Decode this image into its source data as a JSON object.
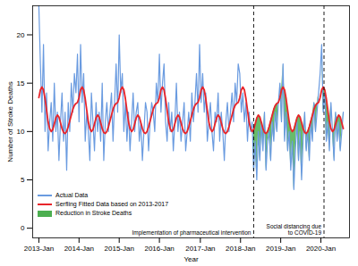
{
  "chart_data": {
    "type": "line",
    "xlabel": "Year",
    "ylabel": "Number of Stroke Deaths",
    "grid": false,
    "legend": "bottom-left",
    "xlim": [
      -8,
      402
    ],
    "xticks": [
      {
        "value": 0,
        "label": "2013-Jan"
      },
      {
        "value": 52,
        "label": "2014-Jan"
      },
      {
        "value": 104,
        "label": "2015-Jan"
      },
      {
        "value": 156,
        "label": "2016-Jan"
      },
      {
        "value": 209,
        "label": "2017-Jan"
      },
      {
        "value": 261,
        "label": "2018-Jan"
      },
      {
        "value": 313,
        "label": "2019-Jan"
      },
      {
        "value": 365,
        "label": "2020-Jan"
      }
    ],
    "ylim": [
      -1,
      23
    ],
    "yticks": [
      0,
      5,
      10,
      15,
      20
    ],
    "x": [
      0,
      2,
      4,
      6,
      8,
      10,
      12,
      14,
      16,
      18,
      20,
      22,
      24,
      26,
      28,
      30,
      32,
      34,
      36,
      38,
      40,
      42,
      44,
      46,
      48,
      50,
      52,
      54,
      56,
      58,
      60,
      62,
      64,
      66,
      68,
      70,
      72,
      74,
      76,
      78,
      80,
      82,
      84,
      86,
      88,
      90,
      92,
      94,
      96,
      98,
      100,
      102,
      104,
      106,
      108,
      110,
      112,
      114,
      116,
      118,
      120,
      122,
      124,
      126,
      128,
      130,
      132,
      134,
      136,
      138,
      140,
      142,
      144,
      146,
      148,
      150,
      152,
      154,
      156,
      158,
      160,
      162,
      164,
      166,
      168,
      170,
      172,
      174,
      176,
      178,
      180,
      182,
      184,
      186,
      188,
      190,
      192,
      194,
      196,
      198,
      200,
      202,
      204,
      206,
      208,
      210,
      212,
      214,
      216,
      218,
      220,
      222,
      224,
      226,
      228,
      230,
      232,
      234,
      236,
      238,
      240,
      242,
      244,
      246,
      248,
      250,
      252,
      254,
      256,
      258,
      260,
      262,
      264,
      266,
      268,
      270,
      272,
      274,
      276,
      278,
      280,
      282,
      284,
      286,
      288,
      290,
      292,
      294,
      296,
      298,
      300,
      302,
      304,
      306,
      308,
      310,
      312,
      314,
      316,
      318,
      320,
      322,
      324,
      326,
      328,
      330,
      332,
      334,
      336,
      338,
      340,
      342,
      344,
      346,
      348,
      350,
      352,
      354,
      356,
      358,
      360,
      362,
      364,
      366,
      368,
      370,
      372,
      374,
      376,
      378,
      380,
      382,
      384,
      386,
      388,
      390,
      392,
      394
    ],
    "series": [
      {
        "name": "Actual Data",
        "color": "#6a9be0",
        "values": [
          23,
          17,
          12,
          19,
          10,
          14,
          8,
          11,
          13,
          9,
          15,
          10,
          12,
          7,
          11,
          14,
          9,
          12,
          6,
          13,
          10,
          15,
          12,
          16,
          14,
          18,
          11,
          19,
          13,
          16,
          9,
          12,
          10,
          7,
          14,
          11,
          8,
          13,
          10,
          12,
          9,
          15,
          7,
          11,
          13,
          10,
          12,
          14,
          9,
          13,
          17,
          12,
          20,
          14,
          16,
          10,
          13,
          9,
          12,
          8,
          11,
          14,
          10,
          12,
          13,
          9,
          11,
          7,
          10,
          13,
          12,
          8,
          11,
          13,
          12,
          10,
          15,
          13,
          18,
          12,
          15,
          17,
          11,
          9,
          13,
          10,
          12,
          8,
          11,
          15,
          10,
          12,
          9,
          11,
          13,
          8,
          10,
          12,
          9,
          14,
          11,
          13,
          16,
          12,
          19,
          13,
          16,
          12,
          14,
          9,
          11,
          13,
          10,
          8,
          12,
          11,
          14,
          9,
          12,
          10,
          7,
          11,
          13,
          10,
          12,
          14,
          11,
          15,
          13,
          17,
          16,
          12,
          14,
          11,
          13,
          9,
          12,
          10,
          11,
          6,
          9,
          5,
          10,
          7,
          11,
          8,
          12,
          6,
          9,
          10,
          7,
          11,
          9,
          12,
          10,
          13,
          15,
          11,
          17,
          9,
          12,
          8,
          10,
          6,
          9,
          4,
          8,
          11,
          7,
          10,
          5,
          9,
          12,
          8,
          10,
          7,
          11,
          9,
          13,
          10,
          12,
          14,
          16,
          19,
          12,
          14,
          9,
          11,
          8,
          13,
          10,
          7,
          12,
          9,
          11,
          8,
          10,
          12
        ]
      },
      {
        "name": "Serfling Fitted Data based on 2013-2017",
        "color": "#e8252b",
        "values": [
          13.5,
          14.3,
          14.6,
          14.3,
          13.4,
          12.2,
          11.0,
          10.3,
          10.0,
          10.2,
          10.8,
          11.4,
          11.7,
          11.5,
          10.9,
          10.3,
          9.9,
          9.8,
          10.0,
          10.5,
          11.1,
          11.7,
          12.3,
          12.7,
          12.9,
          13.0,
          13.5,
          14.3,
          14.6,
          14.3,
          13.4,
          12.2,
          11.0,
          10.3,
          10.0,
          10.2,
          10.8,
          11.4,
          11.7,
          11.5,
          10.9,
          10.3,
          9.9,
          9.8,
          10.0,
          10.5,
          11.1,
          11.7,
          12.3,
          12.7,
          12.9,
          13.0,
          13.5,
          14.3,
          14.6,
          14.3,
          13.4,
          12.2,
          11.0,
          10.3,
          10.0,
          10.2,
          10.8,
          11.4,
          11.7,
          11.5,
          10.9,
          10.3,
          9.9,
          9.8,
          10.0,
          10.5,
          11.1,
          11.7,
          12.3,
          12.7,
          12.9,
          13.0,
          13.5,
          14.3,
          14.6,
          14.3,
          13.4,
          12.2,
          11.0,
          10.3,
          10.0,
          10.2,
          10.8,
          11.4,
          11.7,
          11.5,
          10.9,
          10.3,
          9.9,
          9.8,
          10.0,
          10.5,
          11.1,
          11.7,
          12.3,
          12.7,
          12.9,
          13.0,
          13.5,
          14.3,
          14.6,
          14.3,
          13.4,
          12.2,
          11.0,
          10.3,
          10.0,
          10.2,
          10.8,
          11.4,
          11.7,
          11.5,
          10.9,
          10.3,
          9.9,
          9.8,
          10.0,
          10.5,
          11.1,
          11.7,
          12.3,
          12.7,
          12.9,
          13.0,
          13.5,
          14.3,
          14.6,
          14.3,
          13.4,
          12.2,
          11.0,
          10.3,
          10.0,
          10.2,
          10.8,
          11.4,
          11.7,
          11.5,
          10.9,
          10.3,
          9.9,
          9.8,
          10.0,
          10.5,
          11.1,
          11.7,
          12.3,
          12.7,
          12.9,
          13.0,
          13.5,
          14.3,
          14.6,
          14.3,
          13.4,
          12.2,
          11.0,
          10.3,
          10.0,
          10.2,
          10.8,
          11.4,
          11.7,
          11.5,
          10.9,
          10.3,
          9.9,
          9.8,
          10.0,
          10.5,
          11.1,
          11.7,
          12.3,
          12.7,
          12.9,
          13.0,
          13.5,
          14.3,
          14.6,
          14.3,
          13.4,
          12.2,
          11.0,
          10.3,
          10.0,
          10.2,
          10.8,
          11.4,
          11.7,
          11.5,
          10.9,
          10.3
        ]
      }
    ],
    "reduction": {
      "name": "Reduction in Stroke Deaths",
      "color": "#4caf50"
    },
    "annotations": [
      {
        "x": 278,
        "text": "Implementation of pharmaceutical intervention"
      },
      {
        "x": 369,
        "text": "Social distancing due to COVID-19"
      }
    ]
  }
}
